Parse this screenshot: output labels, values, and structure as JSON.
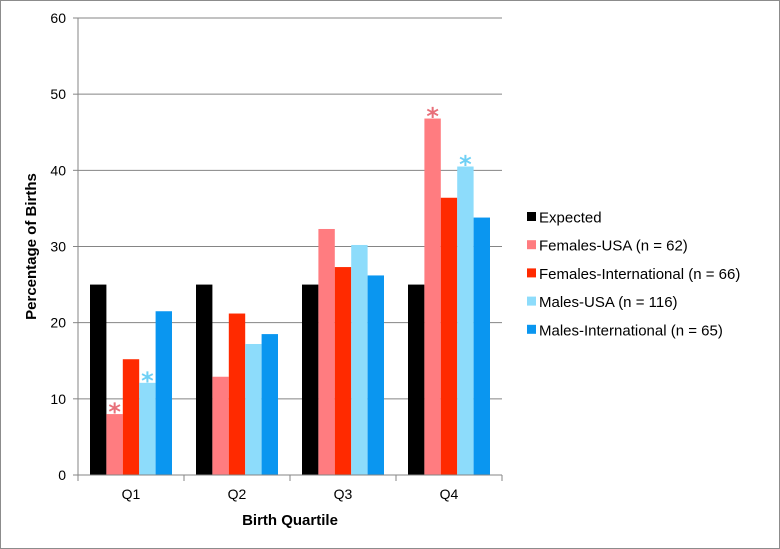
{
  "chart_data": {
    "type": "bar",
    "title": "",
    "xlabel": "Birth Quartile",
    "ylabel": "Percentage of Births",
    "ylim": [
      0,
      60
    ],
    "yticks": [
      "0",
      "10",
      "20",
      "30",
      "40",
      "50",
      "60"
    ],
    "grid": true,
    "legend_position": "right",
    "categories": [
      "Q1",
      "Q2",
      "Q3",
      "Q4"
    ],
    "series": [
      {
        "name": "Expected",
        "color": "#000000",
        "values": [
          25,
          25,
          25,
          25
        ]
      },
      {
        "name": "Females-USA (n = 62)",
        "color": "#ff7c80",
        "values": [
          8,
          12.9,
          32.3,
          46.8
        ]
      },
      {
        "name": "Females-International (n = 66)",
        "color": "#ff2a00",
        "values": [
          15.2,
          21.2,
          27.3,
          36.4
        ]
      },
      {
        "name": "Males-USA (n = 116)",
        "color": "#8ddcfb",
        "values": [
          12.1,
          17.2,
          30.2,
          40.5
        ]
      },
      {
        "name": "Males-International (n = 65)",
        "color": "#0a96f0",
        "values": [
          21.5,
          18.5,
          26.2,
          33.8
        ]
      }
    ],
    "annotations": [
      {
        "text": "*",
        "category": "Q1",
        "series": "Females-USA (n = 62)",
        "color": "#e8707a"
      },
      {
        "text": "*",
        "category": "Q1",
        "series": "Males-USA (n = 116)",
        "color": "#6fd0f5"
      },
      {
        "text": "*",
        "category": "Q4",
        "series": "Females-USA (n = 62)",
        "color": "#e8707a"
      },
      {
        "text": "*",
        "category": "Q4",
        "series": "Males-USA (n = 116)",
        "color": "#6fd0f5"
      }
    ]
  }
}
